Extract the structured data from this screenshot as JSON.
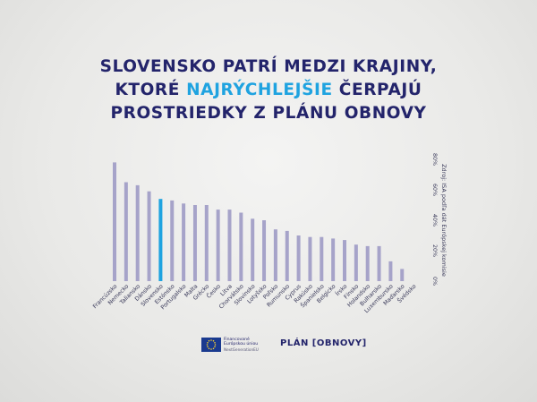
{
  "title": {
    "line1": "SLOVENSKO PATRÍ MEDZI KRAJINY,",
    "line2_pre": "KTORÉ ",
    "line2_highlight": "NAJRÝCHLEJŠIE",
    "line2_post": " ČERPAJÚ",
    "line3": "PROSTRIEDKY Z PLÁNU OBNOVY"
  },
  "colors": {
    "title": "#23246b",
    "highlight": "#1fa3e0",
    "bar_default": "#a6a3c9",
    "bar_highlight": "#1fa3e0"
  },
  "chart_data": {
    "type": "bar",
    "categories": [
      "Francúzsko",
      "Nemecko",
      "Taliansko",
      "Dánsko",
      "Slovensko",
      "Estónsko",
      "Portugalsko",
      "Malta",
      "Grécko",
      "Česko",
      "Litva",
      "Chorvátsko",
      "Slovinsko",
      "Lotyšsko",
      "Poľsko",
      "Rumunsko",
      "Cyprus",
      "Rakúsko",
      "Španielsko",
      "Belgicko",
      "Írsko",
      "Fínsko",
      "Holandsko",
      "Bulharsko",
      "Luxembursko",
      "Maďarsko",
      "Švédsko"
    ],
    "values": [
      78,
      65,
      63,
      59,
      54,
      53,
      51,
      50,
      50,
      47,
      47,
      45,
      41,
      40,
      34,
      33,
      30,
      29,
      29,
      28,
      27,
      24,
      23,
      23,
      13,
      8,
      0
    ],
    "highlight_category": "Slovensko",
    "yticks": [
      "0%",
      "20%",
      "40%",
      "60%",
      "80%"
    ],
    "ylim": [
      0,
      80
    ],
    "source": "Zdroj: ISA podľa dát Európskej komisie",
    "grid": false
  },
  "footer": {
    "eu_line1": "Financované",
    "eu_line2": "Európskou úniou",
    "eu_line3": "NextGenerationEU",
    "plan_logo": "PLÁN [OBNOVY]"
  }
}
